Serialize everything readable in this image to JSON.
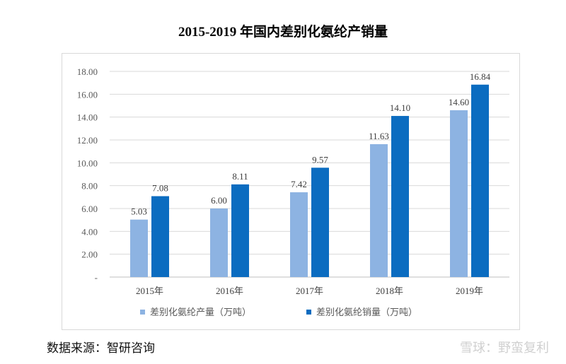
{
  "chart_data": {
    "type": "bar",
    "title": "2015-2019 年国内差别化氨纶产销量",
    "categories": [
      "2015年",
      "2016年",
      "2017年",
      "2018年",
      "2019年"
    ],
    "series": [
      {
        "name": "差别化氨纶产量（万吨）",
        "color": "#8db3e2",
        "values": [
          5.03,
          6.0,
          7.42,
          11.63,
          14.6
        ],
        "labels": [
          "5.03",
          "6.00",
          "7.42",
          "11.63",
          "14.60"
        ]
      },
      {
        "name": "差别化氨纶销量（万吨）",
        "color": "#0b6cc0",
        "values": [
          7.08,
          8.11,
          9.57,
          14.1,
          16.84
        ],
        "labels": [
          "7.08",
          "8.11",
          "9.57",
          "14.10",
          "16.84"
        ]
      }
    ],
    "yticks": [
      "-",
      "2.00",
      "4.00",
      "6.00",
      "8.00",
      "10.00",
      "12.00",
      "14.00",
      "16.00",
      "18.00"
    ],
    "ylim": [
      0,
      18
    ],
    "grid": true,
    "legend": "bottom"
  },
  "source": "数据来源：智研咨询",
  "watermark": "雪球：野蛮复利"
}
